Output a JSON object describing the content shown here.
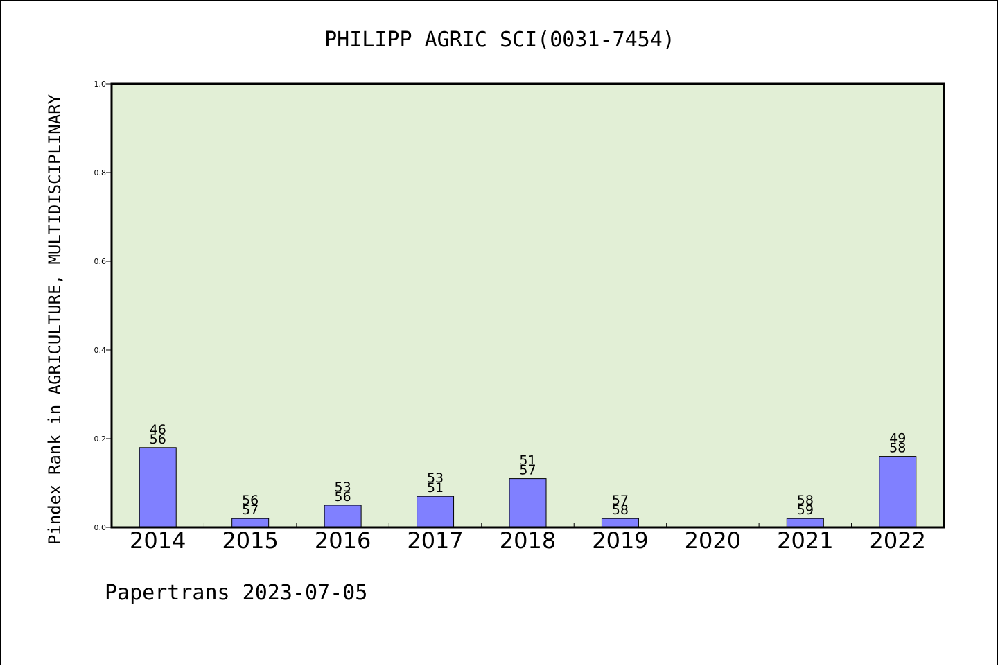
{
  "chart_data": {
    "type": "bar",
    "title": "PHILIPP AGRIC SCI(0031-7454)",
    "ylabel": "Pindex Rank in AGRICULTURE, MULTIDISCIPLINARY",
    "xlabel": "",
    "footer": "Papertrans 2023-07-05",
    "ylim": [
      0,
      1.0
    ],
    "yticks": [
      "0.0",
      "0.2",
      "0.4",
      "0.6",
      "0.8",
      "1.0"
    ],
    "categories": [
      "2014",
      "2015",
      "2016",
      "2017",
      "2018",
      "2019",
      "2020",
      "2021",
      "2022"
    ],
    "values": [
      0.18,
      0.02,
      0.05,
      0.07,
      0.11,
      0.02,
      null,
      0.02,
      0.16
    ],
    "labels_top": [
      "46",
      "56",
      "53",
      "53",
      "51",
      "57",
      "",
      "58",
      "49"
    ],
    "labels_bottom": [
      "56",
      "57",
      "56",
      "51",
      "57",
      "58",
      "",
      "59",
      "58"
    ],
    "grid": false,
    "colors": {
      "plot_background": "#e2efd6",
      "bar_fill": "#8080ff",
      "bar_stroke": "#000000"
    }
  }
}
